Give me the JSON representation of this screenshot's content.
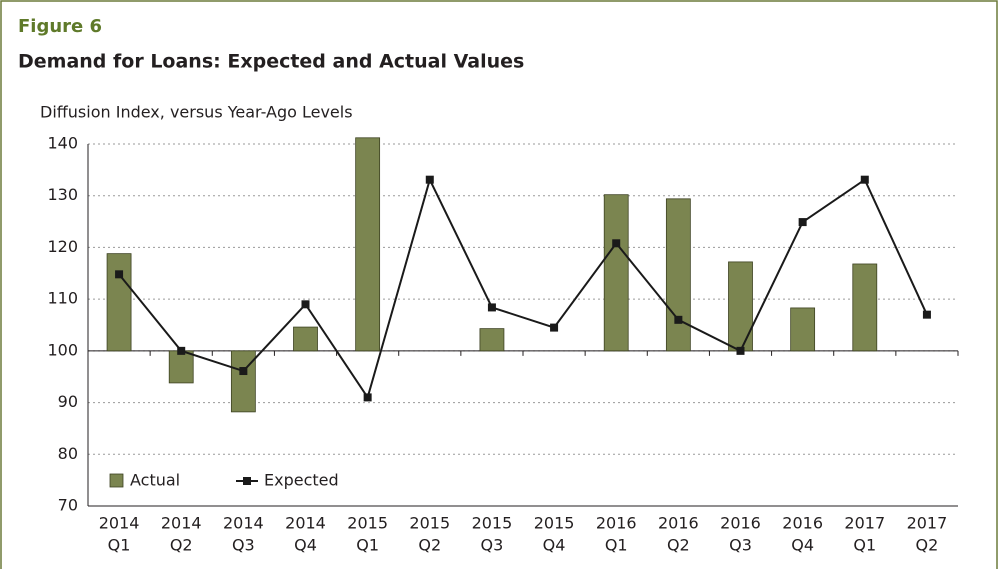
{
  "chart_data": {
    "type": "bar_line",
    "figure_label": "Figure 6",
    "title": "Demand for Loans: Expected and Actual Values",
    "y_axis_label": "Diffusion Index, versus Year-Ago Levels",
    "categories": [
      [
        "2014",
        "Q1"
      ],
      [
        "2014",
        "Q2"
      ],
      [
        "2014",
        "Q3"
      ],
      [
        "2014",
        "Q4"
      ],
      [
        "2015",
        "Q1"
      ],
      [
        "2015",
        "Q2"
      ],
      [
        "2015",
        "Q3"
      ],
      [
        "2015",
        "Q4"
      ],
      [
        "2016",
        "Q1"
      ],
      [
        "2016",
        "Q2"
      ],
      [
        "2016",
        "Q3"
      ],
      [
        "2016",
        "Q4"
      ],
      [
        "2017",
        "Q1"
      ],
      [
        "2017",
        "Q2"
      ]
    ],
    "bar_base": 100,
    "series": [
      {
        "name": "Actual",
        "kind": "bar",
        "color": "#7b8550",
        "values": [
          118.8,
          93.8,
          88.2,
          104.6,
          141.2,
          null,
          104.3,
          null,
          130.2,
          129.4,
          117.2,
          108.3,
          116.8,
          null
        ]
      },
      {
        "name": "Expected",
        "kind": "line",
        "color": "#1a1a1a",
        "values": [
          114.8,
          100,
          96.1,
          109,
          91,
          133.1,
          108.4,
          104.5,
          120.8,
          106,
          100,
          124.9,
          133.1,
          107
        ]
      }
    ],
    "ylim": [
      70,
      140
    ],
    "yticks": [
      70,
      80,
      90,
      100,
      110,
      120,
      130,
      140
    ],
    "grid": true,
    "legend": "bottom-left"
  }
}
